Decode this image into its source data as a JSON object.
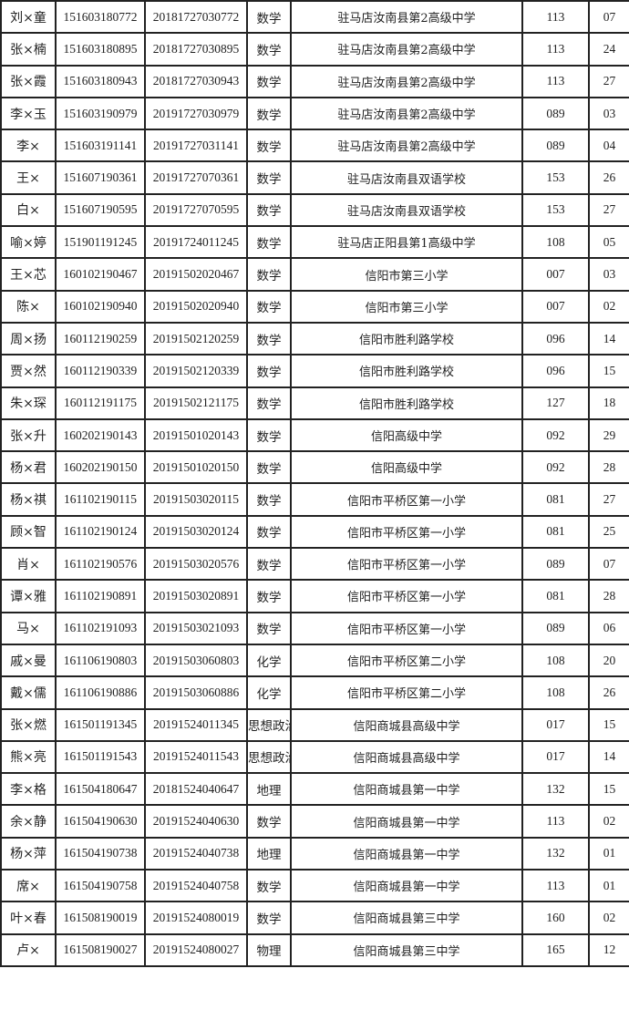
{
  "rows": [
    [
      "刘×童",
      "151603180772",
      "20181727030772",
      "数学",
      "驻马店汝南县第2高级中学",
      "113",
      "07"
    ],
    [
      "张×楠",
      "151603180895",
      "20181727030895",
      "数学",
      "驻马店汝南县第2高级中学",
      "113",
      "24"
    ],
    [
      "张×霞",
      "151603180943",
      "20181727030943",
      "数学",
      "驻马店汝南县第2高级中学",
      "113",
      "27"
    ],
    [
      "李×玉",
      "151603190979",
      "20191727030979",
      "数学",
      "驻马店汝南县第2高级中学",
      "089",
      "03"
    ],
    [
      "李×",
      "151603191141",
      "20191727031141",
      "数学",
      "驻马店汝南县第2高级中学",
      "089",
      "04"
    ],
    [
      "王×",
      "151607190361",
      "20191727070361",
      "数学",
      "驻马店汝南县双语学校",
      "153",
      "26"
    ],
    [
      "白×",
      "151607190595",
      "20191727070595",
      "数学",
      "驻马店汝南县双语学校",
      "153",
      "27"
    ],
    [
      "喻×婷",
      "151901191245",
      "20191724011245",
      "数学",
      "驻马店正阳县第1高级中学",
      "108",
      "05"
    ],
    [
      "王×芯",
      "160102190467",
      "20191502020467",
      "数学",
      "信阳市第三小学",
      "007",
      "03"
    ],
    [
      "陈×",
      "160102190940",
      "20191502020940",
      "数学",
      "信阳市第三小学",
      "007",
      "02"
    ],
    [
      "周×扬",
      "160112190259",
      "20191502120259",
      "数学",
      "信阳市胜利路学校",
      "096",
      "14"
    ],
    [
      "贾×然",
      "160112190339",
      "20191502120339",
      "数学",
      "信阳市胜利路学校",
      "096",
      "15"
    ],
    [
      "朱×琛",
      "160112191175",
      "20191502121175",
      "数学",
      "信阳市胜利路学校",
      "127",
      "18"
    ],
    [
      "张×升",
      "160202190143",
      "20191501020143",
      "数学",
      "信阳高级中学",
      "092",
      "29"
    ],
    [
      "杨×君",
      "160202190150",
      "20191501020150",
      "数学",
      "信阳高级中学",
      "092",
      "28"
    ],
    [
      "杨×祺",
      "161102190115",
      "20191503020115",
      "数学",
      "信阳市平桥区第一小学",
      "081",
      "27"
    ],
    [
      "顾×智",
      "161102190124",
      "20191503020124",
      "数学",
      "信阳市平桥区第一小学",
      "081",
      "25"
    ],
    [
      "肖×",
      "161102190576",
      "20191503020576",
      "数学",
      "信阳市平桥区第一小学",
      "089",
      "07"
    ],
    [
      "谭×雅",
      "161102190891",
      "20191503020891",
      "数学",
      "信阳市平桥区第一小学",
      "081",
      "28"
    ],
    [
      "马×",
      "161102191093",
      "20191503021093",
      "数学",
      "信阳市平桥区第一小学",
      "089",
      "06"
    ],
    [
      "戚×曼",
      "161106190803",
      "20191503060803",
      "化学",
      "信阳市平桥区第二小学",
      "108",
      "20"
    ],
    [
      "戴×儒",
      "161106190886",
      "20191503060886",
      "化学",
      "信阳市平桥区第二小学",
      "108",
      "26"
    ],
    [
      "张×燃",
      "161501191345",
      "20191524011345",
      "思想政治",
      "信阳商城县高级中学",
      "017",
      "15"
    ],
    [
      "熊×亮",
      "161501191543",
      "20191524011543",
      "思想政治",
      "信阳商城县高级中学",
      "017",
      "14"
    ],
    [
      "李×格",
      "161504180647",
      "20181524040647",
      "地理",
      "信阳商城县第一中学",
      "132",
      "15"
    ],
    [
      "余×静",
      "161504190630",
      "20191524040630",
      "数学",
      "信阳商城县第一中学",
      "113",
      "02"
    ],
    [
      "杨×萍",
      "161504190738",
      "20191524040738",
      "地理",
      "信阳商城县第一中学",
      "132",
      "01"
    ],
    [
      "席×",
      "161504190758",
      "20191524040758",
      "数学",
      "信阳商城县第一中学",
      "113",
      "01"
    ],
    [
      "叶×春",
      "161508190019",
      "20191524080019",
      "数学",
      "信阳商城县第三中学",
      "160",
      "02"
    ],
    [
      "卢×",
      "161508190027",
      "20191524080027",
      "物理",
      "信阳商城县第三中学",
      "165",
      "12"
    ]
  ]
}
